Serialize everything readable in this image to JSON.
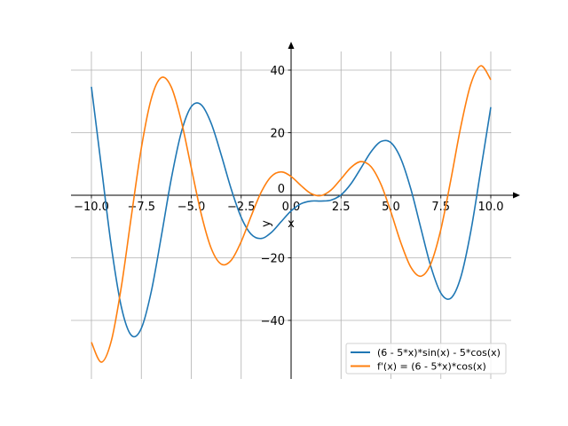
{
  "chart_data": {
    "type": "line",
    "title": "",
    "xlabel": "x",
    "ylabel": "y",
    "xlim": [
      -11,
      11.5
    ],
    "ylim": [
      -58,
      49
    ],
    "grid": true,
    "legend_position": "lower-right",
    "x_ticks": [
      -10,
      -7.5,
      -5,
      -2.5,
      0,
      2.5,
      5,
      7.5,
      10
    ],
    "x_tick_labels": [
      "−10.0",
      "−7.5",
      "−5.0",
      "−2.5",
      "0.0",
      "2.5",
      "5.0",
      "7.5",
      "10.0"
    ],
    "y_ticks": [
      -40,
      -20,
      0,
      20,
      40
    ],
    "y_tick_labels": [
      "−40",
      "−20",
      "0",
      "20",
      "40"
    ],
    "x": [
      -10,
      -9.5,
      -9,
      -8.5,
      -8,
      -7.5,
      -7,
      -6.5,
      -6,
      -5.5,
      -5,
      -4.5,
      -4,
      -3.5,
      -3,
      -2.5,
      -2,
      -1.5,
      -1,
      -0.5,
      0,
      0.5,
      1,
      1.5,
      2,
      2.5,
      3,
      3.5,
      4,
      4.5,
      5,
      5.5,
      6,
      6.5,
      7,
      7.5,
      8,
      8.5,
      9,
      9.5,
      10
    ],
    "series": [
      {
        "name": "(6 - 5*x)*sin(x) - 5*cos(x)",
        "color": "#1f77b4",
        "values": [
          34.66,
          9.01,
          -16.46,
          -35.72,
          -44.78,
          -42.53,
          -30.71,
          -13.16,
          5.26,
          20.09,
          28.31,
          28.91,
          22.95,
          12.92,
          1.99,
          -7.06,
          -12.47,
          -13.82,
          -11.96,
          -8.46,
          -5,
          -2.71,
          -1.86,
          -1.85,
          -1.56,
          0.12,
          3.68,
          8.71,
          13.87,
          17.18,
          16.8,
          11.63,
          1.91,
          -10.58,
          -22.82,
          -31.28,
          -32.91,
          -26.14,
          -11.51,
          8.11,
          28.14
        ]
      },
      {
        "name": "f'(x) = (6 - 5*x)*cos(x)",
        "color": "#ff7f0e",
        "values": [
          -46.99,
          -53.35,
          -46.47,
          -29.2,
          -6.69,
          15.08,
          30.91,
          37.6,
          34.57,
          23.74,
          8.79,
          -6.01,
          -16.99,
          -22.01,
          -20.79,
          -14.82,
          -6.66,
          0.95,
          5.94,
          7.46,
          6,
          3.07,
          0.54,
          -0.11,
          1.66,
          5.21,
          8.91,
          10.77,
          9.15,
          3.48,
          -5.39,
          -15.24,
          -23.04,
          -25.88,
          -21.86,
          -10.92,
          4.95,
          21.97,
          35.53,
          41.38,
          36.92
        ]
      }
    ]
  }
}
